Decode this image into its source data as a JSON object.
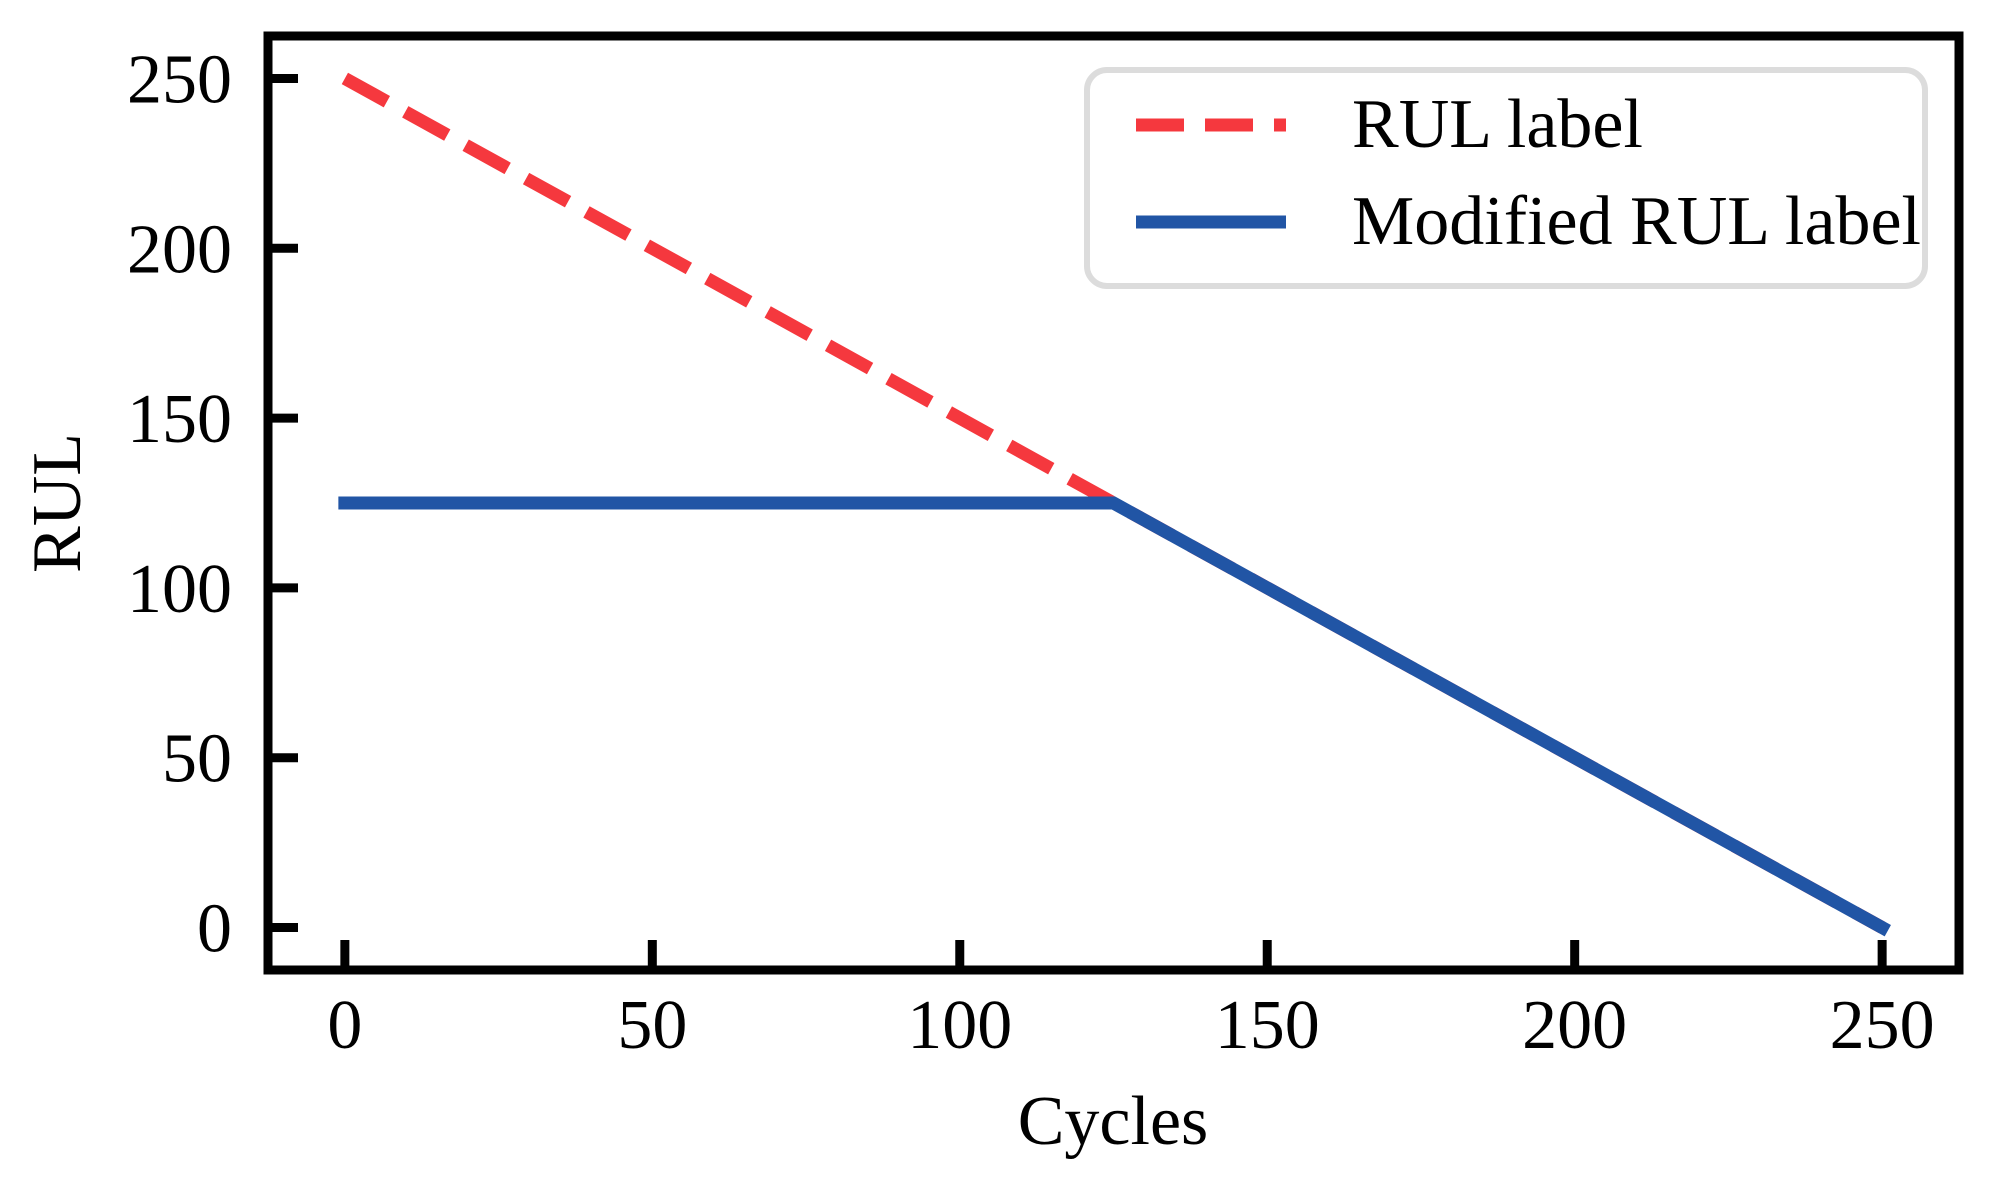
{
  "chart_data": {
    "type": "line",
    "title": "",
    "xlabel": "Cycles",
    "ylabel": "RUL",
    "xlim": [
      -12.5,
      262.5
    ],
    "ylim": [
      -12.5,
      262.5
    ],
    "x_ticks": [
      0,
      50,
      100,
      150,
      200,
      250
    ],
    "y_ticks": [
      0,
      50,
      100,
      150,
      200,
      250
    ],
    "grid": false,
    "series": [
      {
        "name": "RUL label",
        "x": [
          0,
          250
        ],
        "y": [
          250,
          0
        ],
        "style": "dashed",
        "color": "#F5383E",
        "linewidth": 13
      },
      {
        "name": "Modified RUL label",
        "x": [
          0,
          125,
          250
        ],
        "y": [
          125,
          125,
          0
        ],
        "style": "solid",
        "color": "#2155A5",
        "linewidth": 13
      }
    ],
    "legend": {
      "position": "upper right",
      "border_color": "#DCDCDC",
      "fill_color": "#FFFFFF",
      "labels": [
        "RUL label",
        "Modified RUL label"
      ]
    },
    "axis_color": "#000000",
    "background_color": "#FFFFFF"
  },
  "legend_row_1": {
    "label": "RUL label"
  },
  "legend_row_2": {
    "label": "Modified RUL label"
  }
}
